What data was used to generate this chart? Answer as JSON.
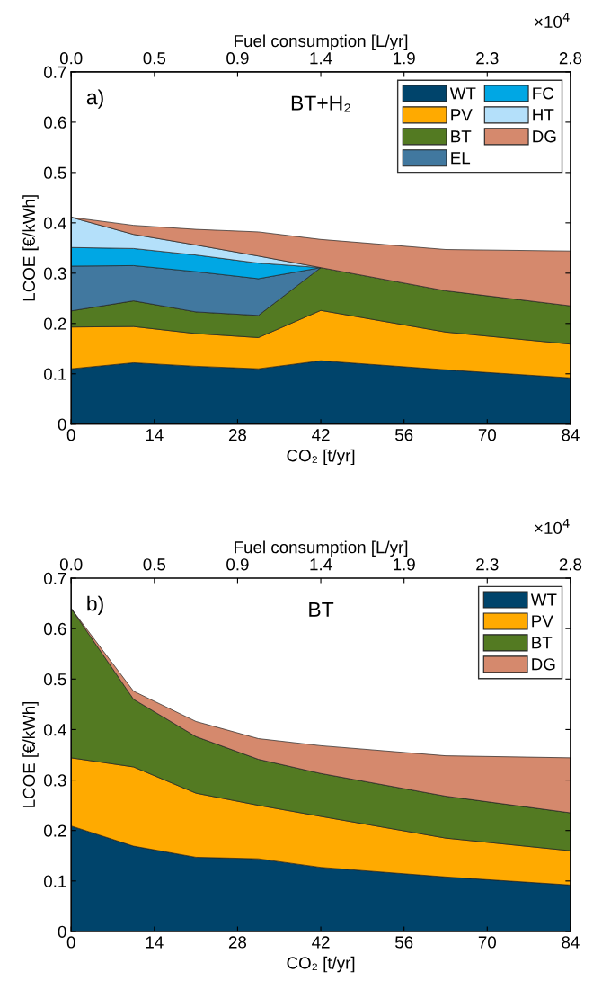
{
  "chart_data": [
    {
      "type": "area",
      "stacked": true,
      "title": "BT+H₂",
      "annotations": [
        "a)",
        "×10$^{4}$"
      ],
      "xlabel": "CO₂ [t/yr]",
      "ylabel": "LCOE [€/kWh]",
      "x2label": "Fuel consumption [L/yr]",
      "x": [
        0,
        10.5,
        21,
        31.5,
        42,
        63,
        84
      ],
      "series": [
        {
          "name": "WT",
          "color": "#00446b",
          "values": [
            0.11,
            0.122,
            0.115,
            0.11,
            0.126,
            0.108,
            0.092
          ]
        },
        {
          "name": "PV",
          "color": "#ffaa00",
          "values": [
            0.083,
            0.072,
            0.065,
            0.062,
            0.1,
            0.075,
            0.067
          ]
        },
        {
          "name": "BT",
          "color": "#537a22",
          "values": [
            0.032,
            0.051,
            0.043,
            0.044,
            0.085,
            0.082,
            0.076
          ]
        },
        {
          "name": "EL",
          "color": "#41789f",
          "values": [
            0.089,
            0.07,
            0.08,
            0.073,
            0,
            null,
            null
          ]
        },
        {
          "name": "FC",
          "color": "#00a7e4",
          "values": [
            0.037,
            0.034,
            0.033,
            0.031,
            0,
            null,
            null
          ]
        },
        {
          "name": "HT",
          "color": "#b4e0fa",
          "values": [
            0.06,
            0.028,
            0.02,
            0.014,
            0,
            null,
            null
          ]
        },
        {
          "name": "DG",
          "color": "#d5896d",
          "values": [
            0,
            0.018,
            0.031,
            0.048,
            0.056,
            0.082,
            0.109
          ]
        }
      ],
      "xlim": [
        0,
        84
      ],
      "xticks": [
        0,
        14,
        28,
        42,
        56,
        70,
        84
      ],
      "ylim": [
        0,
        0.7
      ],
      "yticks": [
        0,
        0.1,
        0.2,
        0.3,
        0.4,
        0.5,
        0.6,
        0.7
      ],
      "x2lim": [
        0,
        2.8
      ],
      "x2ticks": [
        {
          "value": 0,
          "label": "0.0"
        },
        {
          "value": 0.4667,
          "label": "0.5"
        },
        {
          "value": 0.9333,
          "label": "0.9"
        },
        {
          "value": 1.4,
          "label": "1.4"
        },
        {
          "value": 1.8667,
          "label": "1.9"
        },
        {
          "value": 2.3333,
          "label": "2.3"
        },
        {
          "value": 2.8,
          "label": "2.8"
        }
      ],
      "grid": false,
      "legend": "top right"
    },
    {
      "type": "area",
      "stacked": true,
      "title": "BT",
      "annotations": [
        "b)",
        "×10$^{4}$"
      ],
      "xlabel": "CO₂ [t/yr]",
      "ylabel": "LCOE [€/kWh]",
      "x2label": "Fuel consumption [L/yr]",
      "x": [
        0,
        10.5,
        21,
        31.5,
        42,
        63,
        84
      ],
      "series": [
        {
          "name": "WT",
          "color": "#00446b",
          "values": [
            0.209,
            0.169,
            0.147,
            0.144,
            0.127,
            0.108,
            0.092
          ]
        },
        {
          "name": "PV",
          "color": "#ffaa00",
          "values": [
            0.135,
            0.157,
            0.127,
            0.106,
            0.101,
            0.077,
            0.068
          ]
        },
        {
          "name": "BT",
          "color": "#537a22",
          "values": [
            0.296,
            0.134,
            0.112,
            0.091,
            0.085,
            0.083,
            0.075
          ]
        },
        {
          "name": "DG",
          "color": "#d5896d",
          "values": [
            0,
            0.016,
            0.03,
            0.041,
            0.055,
            0.08,
            0.109
          ]
        }
      ],
      "xlim": [
        0,
        84
      ],
      "xticks": [
        0,
        14,
        28,
        42,
        56,
        70,
        84
      ],
      "ylim": [
        0,
        0.7
      ],
      "yticks": [
        0,
        0.1,
        0.2,
        0.3,
        0.4,
        0.5,
        0.6,
        0.7
      ],
      "x2lim": [
        0,
        2.8
      ],
      "x2ticks": [
        {
          "value": 0,
          "label": "0.0"
        },
        {
          "value": 0.4667,
          "label": "0.5"
        },
        {
          "value": 0.9333,
          "label": "0.9"
        },
        {
          "value": 1.4,
          "label": "1.4"
        },
        {
          "value": 1.8667,
          "label": "1.9"
        },
        {
          "value": 2.3333,
          "label": "2.3"
        },
        {
          "value": 2.8,
          "label": "2.8"
        }
      ],
      "grid": false,
      "legend": "top right"
    }
  ]
}
